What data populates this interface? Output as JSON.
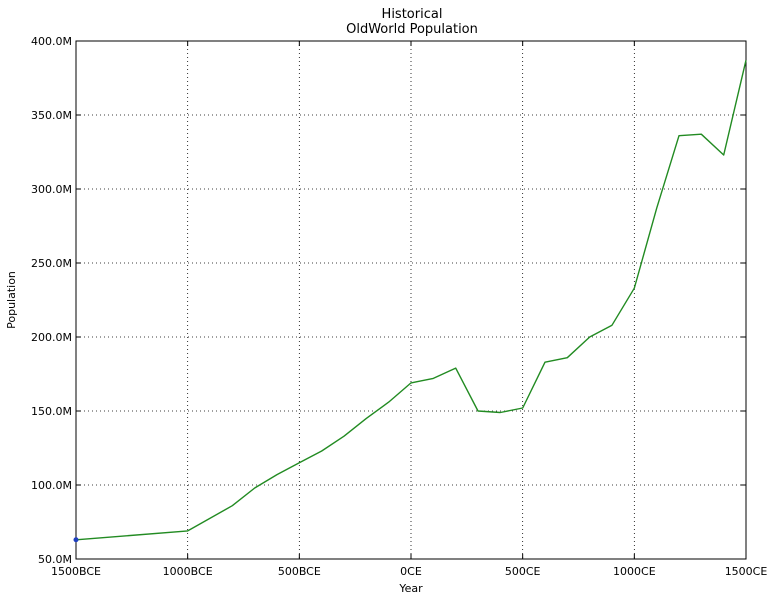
{
  "chart_data": {
    "type": "line",
    "title": [
      "Historical",
      "OldWorld Population"
    ],
    "xlabel": "Year",
    "ylabel": "Population",
    "xlim": [
      -1500,
      1500
    ],
    "ylim": [
      50000000,
      400000000
    ],
    "grid": true,
    "x_ticks": [
      {
        "value": -1500,
        "label": "1500BCE"
      },
      {
        "value": -1000,
        "label": "1000BCE"
      },
      {
        "value": -500,
        "label": "500BCE"
      },
      {
        "value": 0,
        "label": "0CE"
      },
      {
        "value": 500,
        "label": "500CE"
      },
      {
        "value": 1000,
        "label": "1000CE"
      },
      {
        "value": 1500,
        "label": "1500CE"
      }
    ],
    "y_ticks": [
      {
        "value": 50000000,
        "label": "50.0M"
      },
      {
        "value": 100000000,
        "label": "100.0M"
      },
      {
        "value": 150000000,
        "label": "150.0M"
      },
      {
        "value": 200000000,
        "label": "200.0M"
      },
      {
        "value": 250000000,
        "label": "250.0M"
      },
      {
        "value": 300000000,
        "label": "300.0M"
      },
      {
        "value": 350000000,
        "label": "350.0M"
      },
      {
        "value": 400000000,
        "label": "400.0M"
      }
    ],
    "series": [
      {
        "color": "#228b22",
        "x": [
          -1500,
          -1000,
          -800,
          -700,
          -600,
          -500,
          -400,
          -300,
          -200,
          -100,
          0,
          100,
          200,
          300,
          400,
          500,
          600,
          700,
          800,
          900,
          1000,
          1100,
          1200,
          1300,
          1400,
          1500
        ],
        "y": [
          63000000,
          69000000,
          86000000,
          98000000,
          107000000,
          115000000,
          123000000,
          133000000,
          145000000,
          156000000,
          169000000,
          172000000,
          179000000,
          150000000,
          149000000,
          152000000,
          183000000,
          186000000,
          200000000,
          208000000,
          233000000,
          287000000,
          336000000,
          337000000,
          323000000,
          387000000
        ]
      }
    ],
    "marker": {
      "x": -1500,
      "y": 63000000,
      "color": "#1f3fbf"
    }
  }
}
